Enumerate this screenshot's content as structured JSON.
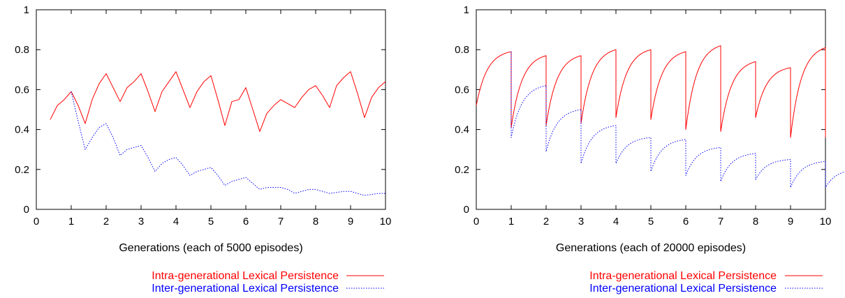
{
  "chart_data": [
    {
      "type": "line",
      "xlabel": "Generations (each of 5000 episodes)",
      "ylabel": "",
      "xlim": [
        0,
        10
      ],
      "ylim": [
        0,
        1
      ],
      "xticks": [
        "0",
        "1",
        "2",
        "3",
        "4",
        "5",
        "6",
        "7",
        "8",
        "9",
        "10"
      ],
      "yticks": [
        "0",
        "0.2",
        "0.4",
        "0.6",
        "0.8",
        "1"
      ],
      "legend_position": "bottom",
      "series": [
        {
          "name": "Intra-generational Lexical Persistence",
          "color": "#ff0000",
          "dash": "solid",
          "x": [
            0.4,
            0.6,
            0.8,
            1.0,
            1.2,
            1.4,
            1.6,
            1.8,
            2.0,
            2.2,
            2.4,
            2.6,
            2.8,
            3.0,
            3.2,
            3.4,
            3.6,
            3.8,
            4.0,
            4.2,
            4.4,
            4.6,
            4.8,
            5.0,
            5.2,
            5.4,
            5.6,
            5.8,
            6.0,
            6.2,
            6.4,
            6.6,
            6.8,
            7.0,
            7.2,
            7.4,
            7.6,
            7.8,
            8.0,
            8.2,
            8.4,
            8.6,
            8.8,
            9.0,
            9.2,
            9.4,
            9.6,
            9.8,
            10.0
          ],
          "y": [
            0.45,
            0.52,
            0.55,
            0.59,
            0.52,
            0.43,
            0.55,
            0.63,
            0.68,
            0.61,
            0.54,
            0.61,
            0.64,
            0.68,
            0.59,
            0.49,
            0.59,
            0.64,
            0.69,
            0.6,
            0.51,
            0.59,
            0.64,
            0.67,
            0.55,
            0.42,
            0.54,
            0.55,
            0.61,
            0.5,
            0.39,
            0.48,
            0.52,
            0.55,
            0.53,
            0.51,
            0.56,
            0.6,
            0.62,
            0.57,
            0.51,
            0.62,
            0.66,
            0.69,
            0.58,
            0.46,
            0.56,
            0.61,
            0.64
          ]
        },
        {
          "name": "Inter-generational Lexical Persistence",
          "color": "#0000ff",
          "dash": "dotted",
          "x": [
            1.0,
            1.2,
            1.4,
            1.6,
            1.8,
            2.0,
            2.2,
            2.4,
            2.6,
            2.8,
            3.0,
            3.2,
            3.4,
            3.6,
            3.8,
            4.0,
            4.2,
            4.4,
            4.6,
            4.8,
            5.0,
            5.2,
            5.4,
            5.6,
            5.8,
            6.0,
            6.2,
            6.4,
            6.6,
            6.8,
            7.0,
            7.2,
            7.4,
            7.6,
            7.8,
            8.0,
            8.2,
            8.4,
            8.6,
            8.8,
            9.0,
            9.2,
            9.4,
            9.6,
            9.8,
            10.0
          ],
          "y": [
            0.59,
            0.44,
            0.3,
            0.36,
            0.41,
            0.43,
            0.36,
            0.27,
            0.3,
            0.31,
            0.32,
            0.26,
            0.19,
            0.23,
            0.25,
            0.26,
            0.22,
            0.17,
            0.19,
            0.2,
            0.21,
            0.17,
            0.12,
            0.14,
            0.15,
            0.16,
            0.13,
            0.1,
            0.11,
            0.11,
            0.11,
            0.1,
            0.08,
            0.09,
            0.1,
            0.1,
            0.09,
            0.08,
            0.085,
            0.09,
            0.09,
            0.08,
            0.07,
            0.075,
            0.08,
            0.08
          ]
        }
      ]
    },
    {
      "type": "line",
      "xlabel": "Generations (each of 20000 episodes)",
      "ylabel": "",
      "xlim": [
        0,
        10
      ],
      "ylim": [
        0,
        1
      ],
      "xticks": [
        "0",
        "1",
        "2",
        "3",
        "4",
        "5",
        "6",
        "7",
        "8",
        "9",
        "10"
      ],
      "yticks": [
        "0",
        "0.2",
        "0.4",
        "0.6",
        "0.8",
        "1"
      ],
      "legend_position": "bottom",
      "intra_segments": [
        [
          0.52,
          0.79
        ],
        [
          0.41,
          0.77
        ],
        [
          0.42,
          0.77
        ],
        [
          0.43,
          0.8
        ],
        [
          0.46,
          0.8
        ],
        [
          0.45,
          0.79
        ],
        [
          0.4,
          0.82
        ],
        [
          0.39,
          0.74
        ],
        [
          0.46,
          0.71
        ],
        [
          0.36,
          0.81
        ],
        [
          0.36,
          0.71
        ]
      ],
      "inter_segments": [
        [
          0.36,
          0.62
        ],
        [
          0.29,
          0.5
        ],
        [
          0.23,
          0.42
        ],
        [
          0.23,
          0.36
        ],
        [
          0.19,
          0.35
        ],
        [
          0.17,
          0.31
        ],
        [
          0.14,
          0.28
        ],
        [
          0.15,
          0.25
        ],
        [
          0.11,
          0.24
        ],
        [
          0.11,
          0.2
        ]
      ],
      "series": [
        {
          "name": "Intra-generational Lexical Persistence",
          "color": "#ff0000",
          "dash": "solid"
        },
        {
          "name": "Inter-generational Lexical Persistence",
          "color": "#0000ff",
          "dash": "dotted"
        }
      ]
    }
  ]
}
